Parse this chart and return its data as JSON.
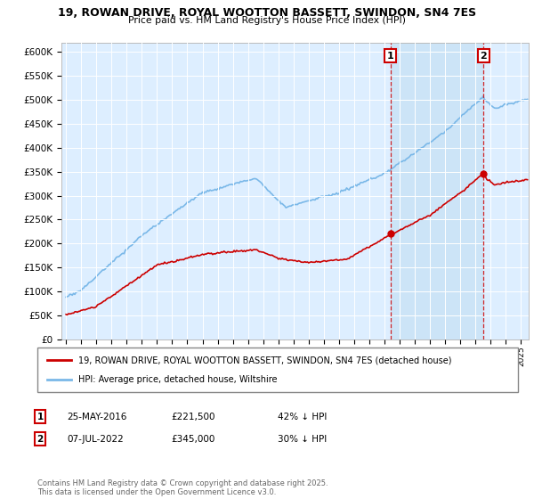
{
  "title1": "19, ROWAN DRIVE, ROYAL WOOTTON BASSETT, SWINDON, SN4 7ES",
  "title2": "Price paid vs. HM Land Registry's House Price Index (HPI)",
  "legend_line1": "19, ROWAN DRIVE, ROYAL WOOTTON BASSETT, SWINDON, SN4 7ES (detached house)",
  "legend_line2": "HPI: Average price, detached house, Wiltshire",
  "annotation1_date": "25-MAY-2016",
  "annotation1_price": "£221,500",
  "annotation1_hpi": "42% ↓ HPI",
  "annotation2_date": "07-JUL-2022",
  "annotation2_price": "£345,000",
  "annotation2_hpi": "30% ↓ HPI",
  "footnote": "Contains HM Land Registry data © Crown copyright and database right 2025.\nThis data is licensed under the Open Government Licence v3.0.",
  "hpi_color": "#7ab8e8",
  "price_color": "#cc0000",
  "sale1_x": 2016.38,
  "sale2_x": 2022.52,
  "sale1_price": 221500,
  "sale2_price": 345000,
  "ylim_min": 0,
  "ylim_max": 620000,
  "xlim_min": 1994.7,
  "xlim_max": 2025.5,
  "plot_bg": "#ddeeff",
  "highlight_bg": "#cce4f7"
}
